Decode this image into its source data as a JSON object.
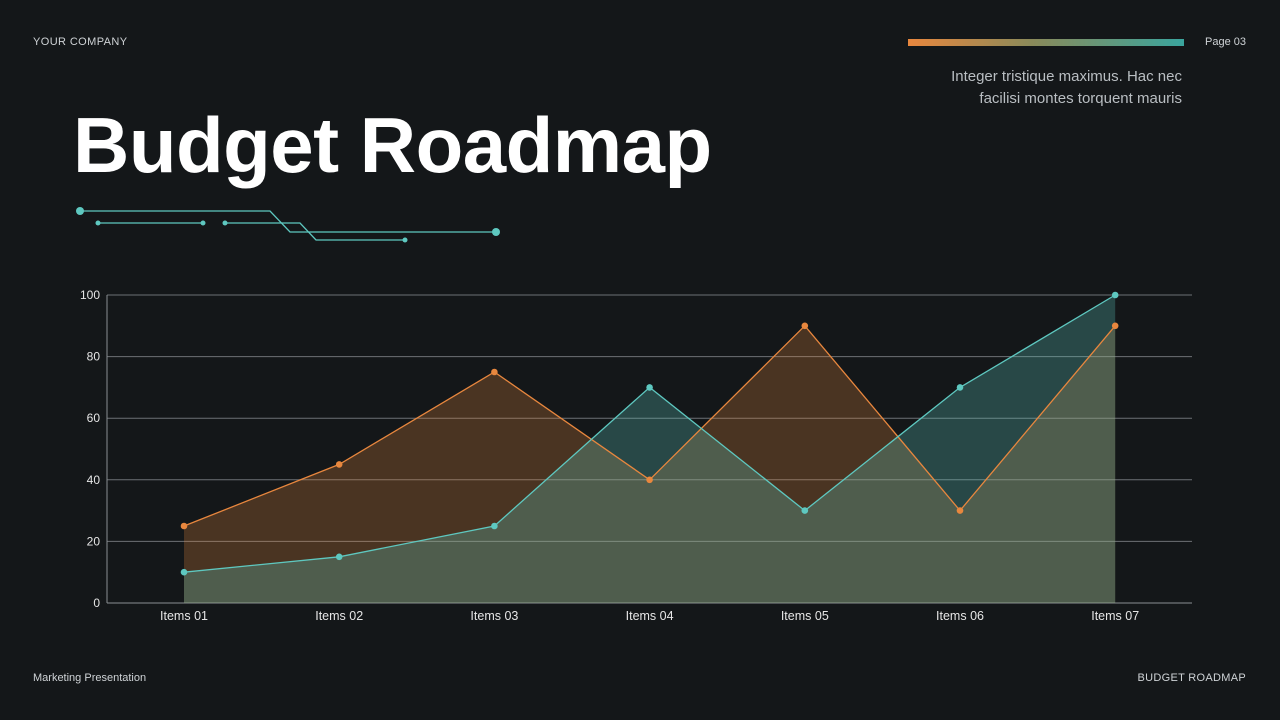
{
  "header": {
    "company": "YOUR COMPANY",
    "page": "Page 03",
    "subtitle_line1": "Integer tristique maximus. Hac nec",
    "subtitle_line2": "facilisi montes torquent mauris",
    "title": "Budget Roadmap"
  },
  "footer": {
    "left": "Marketing Presentation",
    "right": "BUDGET ROADMAP"
  },
  "colors": {
    "background": "#141719",
    "orange": "#e8873e",
    "teal": "#5ec8c0"
  },
  "chart_data": {
    "type": "area",
    "categories": [
      "Items 01",
      "Items 02",
      "Items 03",
      "Items 04",
      "Items 05",
      "Items 06",
      "Items 07"
    ],
    "series": [
      {
        "values": [
          25,
          45,
          75,
          40,
          90,
          30,
          90
        ],
        "color": "#e8873e"
      },
      {
        "values": [
          10,
          15,
          25,
          70,
          30,
          70,
          100
        ],
        "color": "#5ec8c0"
      }
    ],
    "y_ticks": [
      0,
      20,
      40,
      60,
      80,
      100
    ],
    "ylim": [
      0,
      100
    ],
    "grid": true,
    "legend": "none"
  }
}
